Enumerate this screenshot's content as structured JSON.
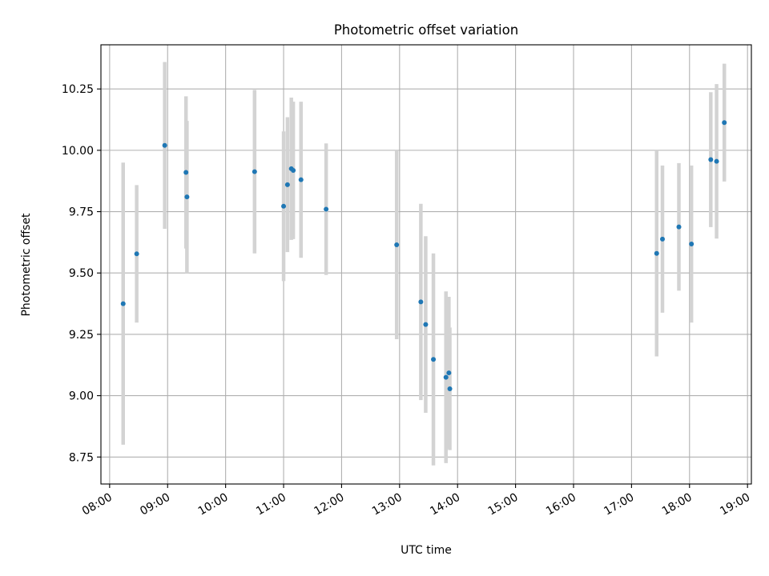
{
  "chart_data": {
    "type": "scatter",
    "title": "Photometric offset variation",
    "xlabel": "UTC time",
    "ylabel": "Photometric offset",
    "x_ticks": [
      "08:00",
      "09:00",
      "10:00",
      "11:00",
      "12:00",
      "13:00",
      "14:00",
      "15:00",
      "16:00",
      "17:00",
      "18:00",
      "19:00"
    ],
    "y_ticks": [
      "8.75",
      "9.00",
      "9.25",
      "9.50",
      "9.75",
      "10.00",
      "10.25"
    ],
    "xlim": [
      "07:51",
      "19:04"
    ],
    "ylim": [
      8.64,
      10.43
    ],
    "grid": true,
    "colors": {
      "point": "#1f77b4",
      "errorbar": "#d3d3d3",
      "grid": "#b0b0b0"
    },
    "points": [
      {
        "x": "08:14",
        "y": 9.375,
        "yerr": 0.575
      },
      {
        "x": "08:28",
        "y": 9.578,
        "yerr": 0.28
      },
      {
        "x": "08:57",
        "y": 10.02,
        "yerr": 0.34
      },
      {
        "x": "09:19",
        "y": 9.91,
        "yerr": 0.31
      },
      {
        "x": "09:20",
        "y": 9.81,
        "yerr": 0.31
      },
      {
        "x": "10:30",
        "y": 9.913,
        "yerr": 0.333
      },
      {
        "x": "11:00",
        "y": 9.772,
        "yerr": 0.305
      },
      {
        "x": "11:04",
        "y": 9.86,
        "yerr": 0.275
      },
      {
        "x": "11:08",
        "y": 9.925,
        "yerr": 0.29
      },
      {
        "x": "11:10",
        "y": 9.918,
        "yerr": 0.28
      },
      {
        "x": "11:18",
        "y": 9.88,
        "yerr": 0.318
      },
      {
        "x": "11:44",
        "y": 9.76,
        "yerr": 0.268
      },
      {
        "x": "12:57",
        "y": 9.615,
        "yerr": 0.385
      },
      {
        "x": "13:22",
        "y": 9.382,
        "yerr": 0.4
      },
      {
        "x": "13:27",
        "y": 9.29,
        "yerr": 0.36
      },
      {
        "x": "13:35",
        "y": 9.148,
        "yerr": 0.432
      },
      {
        "x": "13:48",
        "y": 9.075,
        "yerr": 0.35
      },
      {
        "x": "13:51",
        "y": 9.093,
        "yerr": 0.31
      },
      {
        "x": "13:52",
        "y": 9.028,
        "yerr": 0.25
      },
      {
        "x": "17:26",
        "y": 9.58,
        "yerr": 0.42
      },
      {
        "x": "17:32",
        "y": 9.638,
        "yerr": 0.3
      },
      {
        "x": "17:49",
        "y": 9.688,
        "yerr": 0.26
      },
      {
        "x": "18:02",
        "y": 9.618,
        "yerr": 0.32
      },
      {
        "x": "18:22",
        "y": 9.962,
        "yerr": 0.275
      },
      {
        "x": "18:28",
        "y": 9.955,
        "yerr": 0.315
      },
      {
        "x": "18:36",
        "y": 10.113,
        "yerr": 0.24
      }
    ]
  }
}
